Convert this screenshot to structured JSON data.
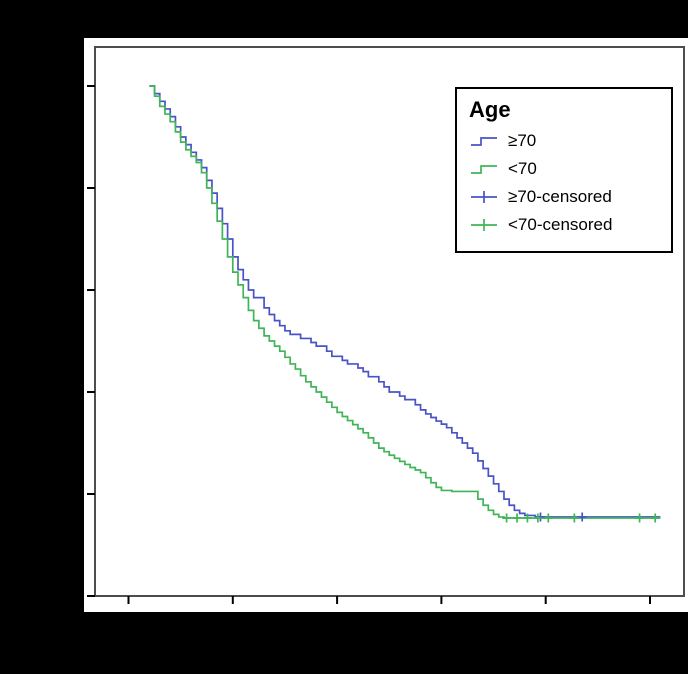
{
  "colors": {
    "background": "#000000",
    "plot_background": "#ffffff",
    "frame_border": "#4d4d4d",
    "tick_color": "#000000",
    "series_ge70": "#4753c6",
    "series_lt70": "#3fb558"
  },
  "legend": {
    "title": "Age",
    "items": [
      {
        "label": "≥70",
        "kind": "step-line",
        "series_index": 0
      },
      {
        "label": "<70",
        "kind": "step-line",
        "series_index": 1
      },
      {
        "label": "≥70-censored",
        "kind": "plus-line",
        "series_index": 2
      },
      {
        "label": "<70-censored",
        "kind": "plus-line",
        "series_index": 3
      }
    ]
  },
  "chart_data": {
    "type": "line",
    "subtype": "kaplan-meier-step",
    "title": "",
    "legend_title": "Age",
    "legend_position": "upper right",
    "grid": false,
    "axis_tick_labels_visible": false,
    "note": "Axis tick labels are not visible in the image; y assumed cumulative survival 0-1 (6 ticks, step 0.2), x in unlabeled time units 0-100 (6 ticks, step 20).",
    "xlim": [
      -6.5,
      106.5
    ],
    "ylim": [
      0,
      1.08
    ],
    "x_ticks": [
      0,
      20,
      40,
      60,
      80,
      100
    ],
    "y_ticks": [
      0,
      0.2,
      0.4,
      0.6,
      0.8,
      1.0
    ],
    "series": [
      {
        "name": "≥70",
        "color": "#4753c6",
        "style": "step",
        "points": [
          [
            4,
            1.0
          ],
          [
            5,
            0.985
          ],
          [
            6,
            0.97
          ],
          [
            7,
            0.955
          ],
          [
            8,
            0.94
          ],
          [
            9,
            0.92
          ],
          [
            10,
            0.9
          ],
          [
            11,
            0.885
          ],
          [
            12,
            0.87
          ],
          [
            13,
            0.855
          ],
          [
            14,
            0.84
          ],
          [
            15,
            0.815
          ],
          [
            16,
            0.79
          ],
          [
            17,
            0.76
          ],
          [
            18,
            0.73
          ],
          [
            19,
            0.7
          ],
          [
            20,
            0.665
          ],
          [
            21,
            0.64
          ],
          [
            22,
            0.62
          ],
          [
            23,
            0.6
          ],
          [
            24,
            0.585
          ],
          [
            26,
            0.565
          ],
          [
            27,
            0.552
          ],
          [
            28,
            0.54
          ],
          [
            29,
            0.53
          ],
          [
            30,
            0.52
          ],
          [
            31,
            0.513
          ],
          [
            33,
            0.505
          ],
          [
            35,
            0.497
          ],
          [
            36,
            0.49
          ],
          [
            38,
            0.48
          ],
          [
            39,
            0.47
          ],
          [
            41,
            0.462
          ],
          [
            42,
            0.455
          ],
          [
            44,
            0.447
          ],
          [
            45,
            0.44
          ],
          [
            46,
            0.43
          ],
          [
            48,
            0.42
          ],
          [
            49,
            0.41
          ],
          [
            50,
            0.4
          ],
          [
            52,
            0.392
          ],
          [
            53,
            0.385
          ],
          [
            55,
            0.375
          ],
          [
            56,
            0.365
          ],
          [
            57,
            0.357
          ],
          [
            58,
            0.35
          ],
          [
            59,
            0.343
          ],
          [
            60,
            0.337
          ],
          [
            61,
            0.33
          ],
          [
            62,
            0.32
          ],
          [
            63,
            0.31
          ],
          [
            64,
            0.3
          ],
          [
            65,
            0.29
          ],
          [
            66,
            0.28
          ],
          [
            67,
            0.265
          ],
          [
            68,
            0.25
          ],
          [
            69,
            0.235
          ],
          [
            70,
            0.22
          ],
          [
            71,
            0.205
          ],
          [
            72,
            0.19
          ],
          [
            73,
            0.178
          ],
          [
            74,
            0.168
          ],
          [
            75,
            0.162
          ],
          [
            76,
            0.158
          ],
          [
            78,
            0.155
          ],
          [
            102,
            0.155
          ]
        ]
      },
      {
        "name": "<70",
        "color": "#3fb558",
        "style": "step",
        "points": [
          [
            4,
            1.0
          ],
          [
            5,
            0.98
          ],
          [
            6,
            0.96
          ],
          [
            7,
            0.945
          ],
          [
            8,
            0.93
          ],
          [
            9,
            0.91
          ],
          [
            10,
            0.89
          ],
          [
            11,
            0.875
          ],
          [
            12,
            0.862
          ],
          [
            13,
            0.85
          ],
          [
            14,
            0.83
          ],
          [
            15,
            0.8
          ],
          [
            16,
            0.77
          ],
          [
            17,
            0.735
          ],
          [
            18,
            0.7
          ],
          [
            19,
            0.665
          ],
          [
            20,
            0.635
          ],
          [
            21,
            0.61
          ],
          [
            22,
            0.585
          ],
          [
            23,
            0.56
          ],
          [
            24,
            0.54
          ],
          [
            25,
            0.525
          ],
          [
            26,
            0.51
          ],
          [
            27,
            0.5
          ],
          [
            28,
            0.49
          ],
          [
            29,
            0.48
          ],
          [
            30,
            0.468
          ],
          [
            31,
            0.455
          ],
          [
            32,
            0.445
          ],
          [
            33,
            0.432
          ],
          [
            34,
            0.42
          ],
          [
            35,
            0.41
          ],
          [
            36,
            0.4
          ],
          [
            37,
            0.39
          ],
          [
            38,
            0.38
          ],
          [
            39,
            0.37
          ],
          [
            40,
            0.36
          ],
          [
            41,
            0.352
          ],
          [
            42,
            0.344
          ],
          [
            43,
            0.336
          ],
          [
            44,
            0.328
          ],
          [
            45,
            0.32
          ],
          [
            46,
            0.31
          ],
          [
            47,
            0.3
          ],
          [
            48,
            0.29
          ],
          [
            49,
            0.283
          ],
          [
            50,
            0.276
          ],
          [
            51,
            0.27
          ],
          [
            52,
            0.264
          ],
          [
            53,
            0.258
          ],
          [
            54,
            0.252
          ],
          [
            55,
            0.247
          ],
          [
            56,
            0.242
          ],
          [
            57,
            0.232
          ],
          [
            58,
            0.222
          ],
          [
            59,
            0.213
          ],
          [
            60,
            0.207
          ],
          [
            62,
            0.205
          ],
          [
            66,
            0.205
          ],
          [
            67,
            0.19
          ],
          [
            68,
            0.178
          ],
          [
            69,
            0.168
          ],
          [
            70,
            0.16
          ],
          [
            71,
            0.155
          ],
          [
            72,
            0.153
          ],
          [
            102,
            0.153
          ]
        ]
      },
      {
        "name": "≥70-censored",
        "color": "#4753c6",
        "style": "plus",
        "points": [
          [
            79,
            0.155
          ],
          [
            87,
            0.155
          ]
        ]
      },
      {
        "name": "<70-censored",
        "color": "#3fb558",
        "style": "plus",
        "points": [
          [
            72.5,
            0.153
          ],
          [
            74.5,
            0.153
          ],
          [
            76.5,
            0.153
          ],
          [
            78.5,
            0.153
          ],
          [
            80.5,
            0.153
          ],
          [
            85.5,
            0.153
          ],
          [
            98,
            0.153
          ],
          [
            101,
            0.153
          ]
        ]
      }
    ]
  }
}
